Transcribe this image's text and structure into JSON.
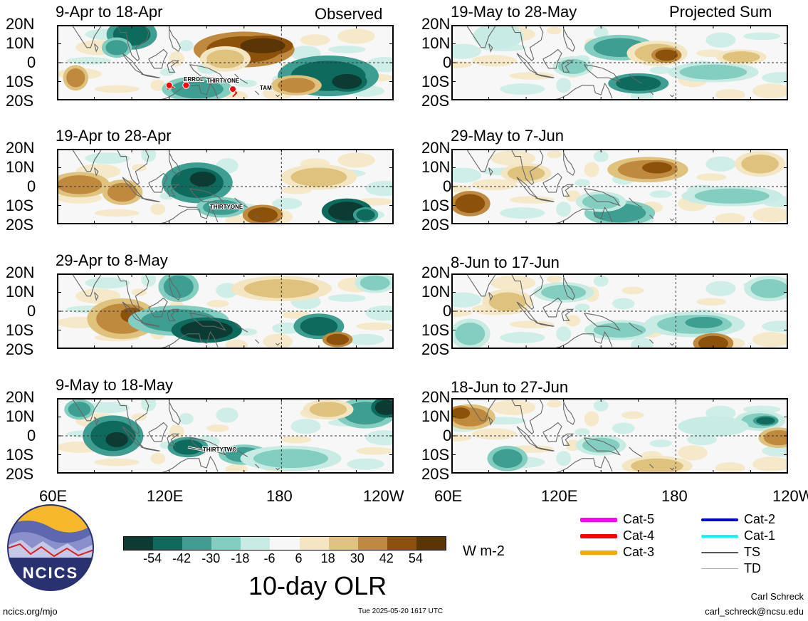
{
  "panels": [
    {
      "id": "obs1",
      "title": "9-Apr to 18-Apr",
      "corner_label": "Observed",
      "storms": [
        "ERROL",
        "THIRTYONE",
        "TAM"
      ]
    },
    {
      "id": "obs2",
      "title": "19-Apr to 28-Apr",
      "corner_label": "",
      "storms": [
        "THIRTYONE"
      ]
    },
    {
      "id": "obs3",
      "title": "29-Apr to 8-May",
      "corner_label": "",
      "storms": []
    },
    {
      "id": "obs4",
      "title": "9-May to 18-May",
      "corner_label": "",
      "storms": [
        "THIRTYTWO"
      ]
    },
    {
      "id": "proj1",
      "title": "19-May to 28-May",
      "corner_label": "Projected Sum",
      "storms": []
    },
    {
      "id": "proj2",
      "title": "29-May to 7-Jun",
      "corner_label": "",
      "storms": []
    },
    {
      "id": "proj3",
      "title": "8-Jun to 17-Jun",
      "corner_label": "",
      "storms": []
    },
    {
      "id": "proj4",
      "title": "18-Jun to 27-Jun",
      "corner_label": "",
      "storms": []
    }
  ],
  "lat_labels": [
    "20N",
    "10N",
    "0",
    "10S",
    "20S"
  ],
  "lon_labels_left": [
    "60E",
    "120E",
    "180",
    "120W"
  ],
  "lon_labels_right": [
    "60E",
    "120E",
    "180",
    "120W"
  ],
  "colorbar": {
    "colors": [
      "#0b3b32",
      "#0e6a5d",
      "#3e9e92",
      "#83cec0",
      "#c8ece4",
      "#f7f7f7",
      "#f4e6c2",
      "#dfc27d",
      "#c08a3e",
      "#8c510a",
      "#5a3606"
    ],
    "ticks": [
      "-54",
      "-42",
      "-30",
      "-18",
      "-6",
      "6",
      "18",
      "30",
      "42",
      "54"
    ],
    "units": "W m-2",
    "title": "10-day OLR"
  },
  "legend": [
    {
      "label": "Cat-5",
      "color": "#ff00ff"
    },
    {
      "label": "Cat-4",
      "color": "#ff0000"
    },
    {
      "label": "Cat-3",
      "color": "#ffa500"
    },
    {
      "label": "Cat-2",
      "color": "#0000cc"
    },
    {
      "label": "Cat-1",
      "color": "#00ffff"
    },
    {
      "label": "TS",
      "color": "#555555"
    },
    {
      "label": "TD",
      "color": "#aaaaaa"
    }
  ],
  "footer": {
    "logo_text": "NCICS",
    "url": "ncics.org/mjo",
    "timestamp": "Tue 2025-05-20 1617 UTC",
    "author": "Carl Schreck",
    "email": "carl_schreck@ncsu.edu"
  }
}
